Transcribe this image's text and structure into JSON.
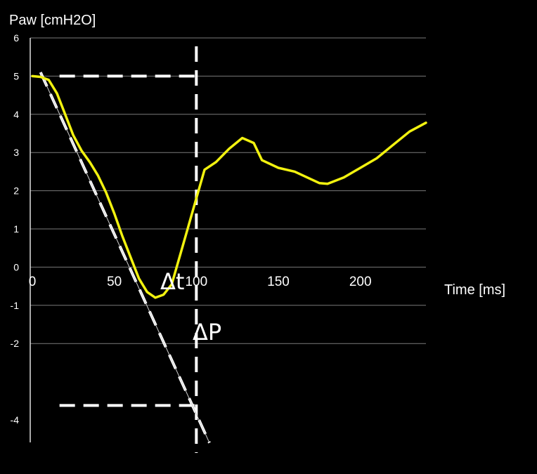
{
  "chart_data": {
    "type": "line",
    "ylabel": "Paw [cmH2O]",
    "xlabel": "Time [ms]",
    "xlim": [
      0,
      240
    ],
    "ylim": [
      -4.7,
      6
    ],
    "x_ticks": [
      0,
      50,
      100,
      150,
      200
    ],
    "y_ticks": [
      6,
      5,
      4,
      3,
      2,
      1,
      0,
      -1,
      -2,
      -4
    ],
    "grid": true,
    "series": [
      {
        "color": "#f2f20f",
        "points": [
          [
            0,
            5.0
          ],
          [
            5,
            4.98
          ],
          [
            10,
            4.9
          ],
          [
            15,
            4.55
          ],
          [
            20,
            4.0
          ],
          [
            25,
            3.45
          ],
          [
            30,
            3.05
          ],
          [
            35,
            2.75
          ],
          [
            40,
            2.4
          ],
          [
            45,
            1.95
          ],
          [
            50,
            1.4
          ],
          [
            55,
            0.8
          ],
          [
            60,
            0.25
          ],
          [
            65,
            -0.3
          ],
          [
            70,
            -0.65
          ],
          [
            75,
            -0.8
          ],
          [
            80,
            -0.72
          ],
          [
            85,
            -0.45
          ],
          [
            90,
            0.3
          ],
          [
            95,
            1.05
          ],
          [
            100,
            1.8
          ],
          [
            105,
            2.55
          ],
          [
            112,
            2.75
          ],
          [
            120,
            3.1
          ],
          [
            128,
            3.38
          ],
          [
            135,
            3.25
          ],
          [
            140,
            2.8
          ],
          [
            150,
            2.6
          ],
          [
            160,
            2.5
          ],
          [
            170,
            2.3
          ],
          [
            175,
            2.2
          ],
          [
            180,
            2.18
          ],
          [
            190,
            2.35
          ],
          [
            200,
            2.6
          ],
          [
            210,
            2.85
          ],
          [
            220,
            3.2
          ],
          [
            230,
            3.55
          ],
          [
            240,
            3.78
          ]
        ]
      }
    ],
    "annotations": {
      "delta_t": "Δt",
      "delta_p": "ΔP",
      "slope_line": {
        "x": [
          5,
          108
        ],
        "y": [
          5.1,
          -4.6
        ],
        "color": "#ffffff"
      },
      "baseline_dash": {
        "y": 5,
        "x": [
          8,
          100
        ]
      },
      "bottom_dash": {
        "y": -3.62,
        "x": [
          8,
          100
        ]
      },
      "vertical_dash": {
        "x": 100,
        "y": [
          6,
          -4.7
        ]
      },
      "colors": {
        "line": "#f2f20f",
        "dash": "#ffffff",
        "grid": "#7a7a7a",
        "background": "#000000"
      }
    }
  }
}
